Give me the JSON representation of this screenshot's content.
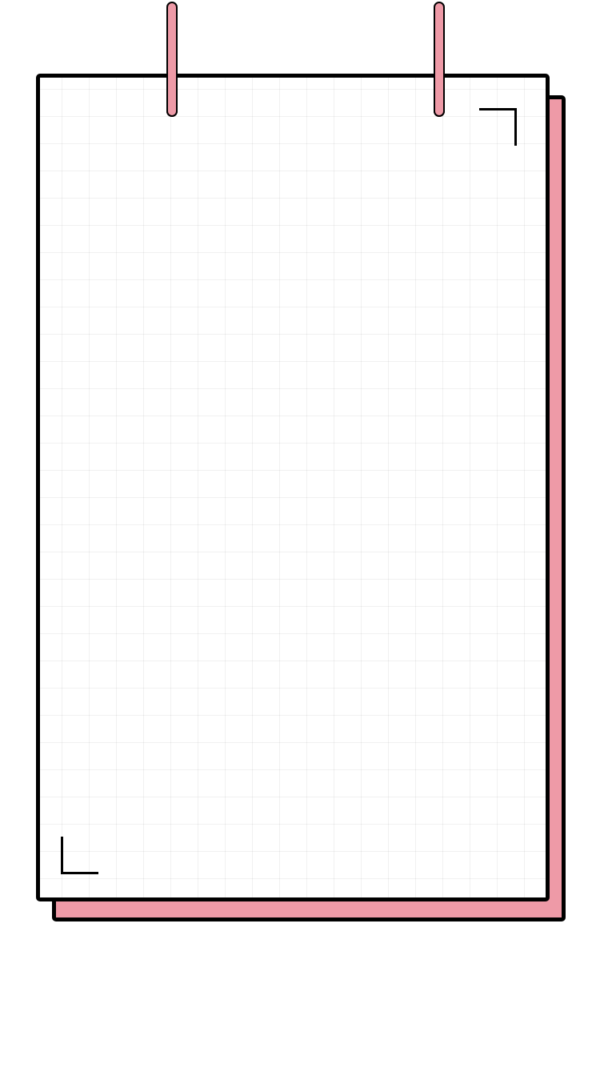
{
  "colors": {
    "accent": "#ee9aa7",
    "ring_tip": "#8b0f1e",
    "outline": "#000000",
    "paper": "#ffffff",
    "grid": "#ededed"
  },
  "notepad": {
    "icons": [
      "binder-ring-icon",
      "binder-ring-icon",
      "corner-bracket-icon",
      "corner-bracket-icon"
    ]
  }
}
